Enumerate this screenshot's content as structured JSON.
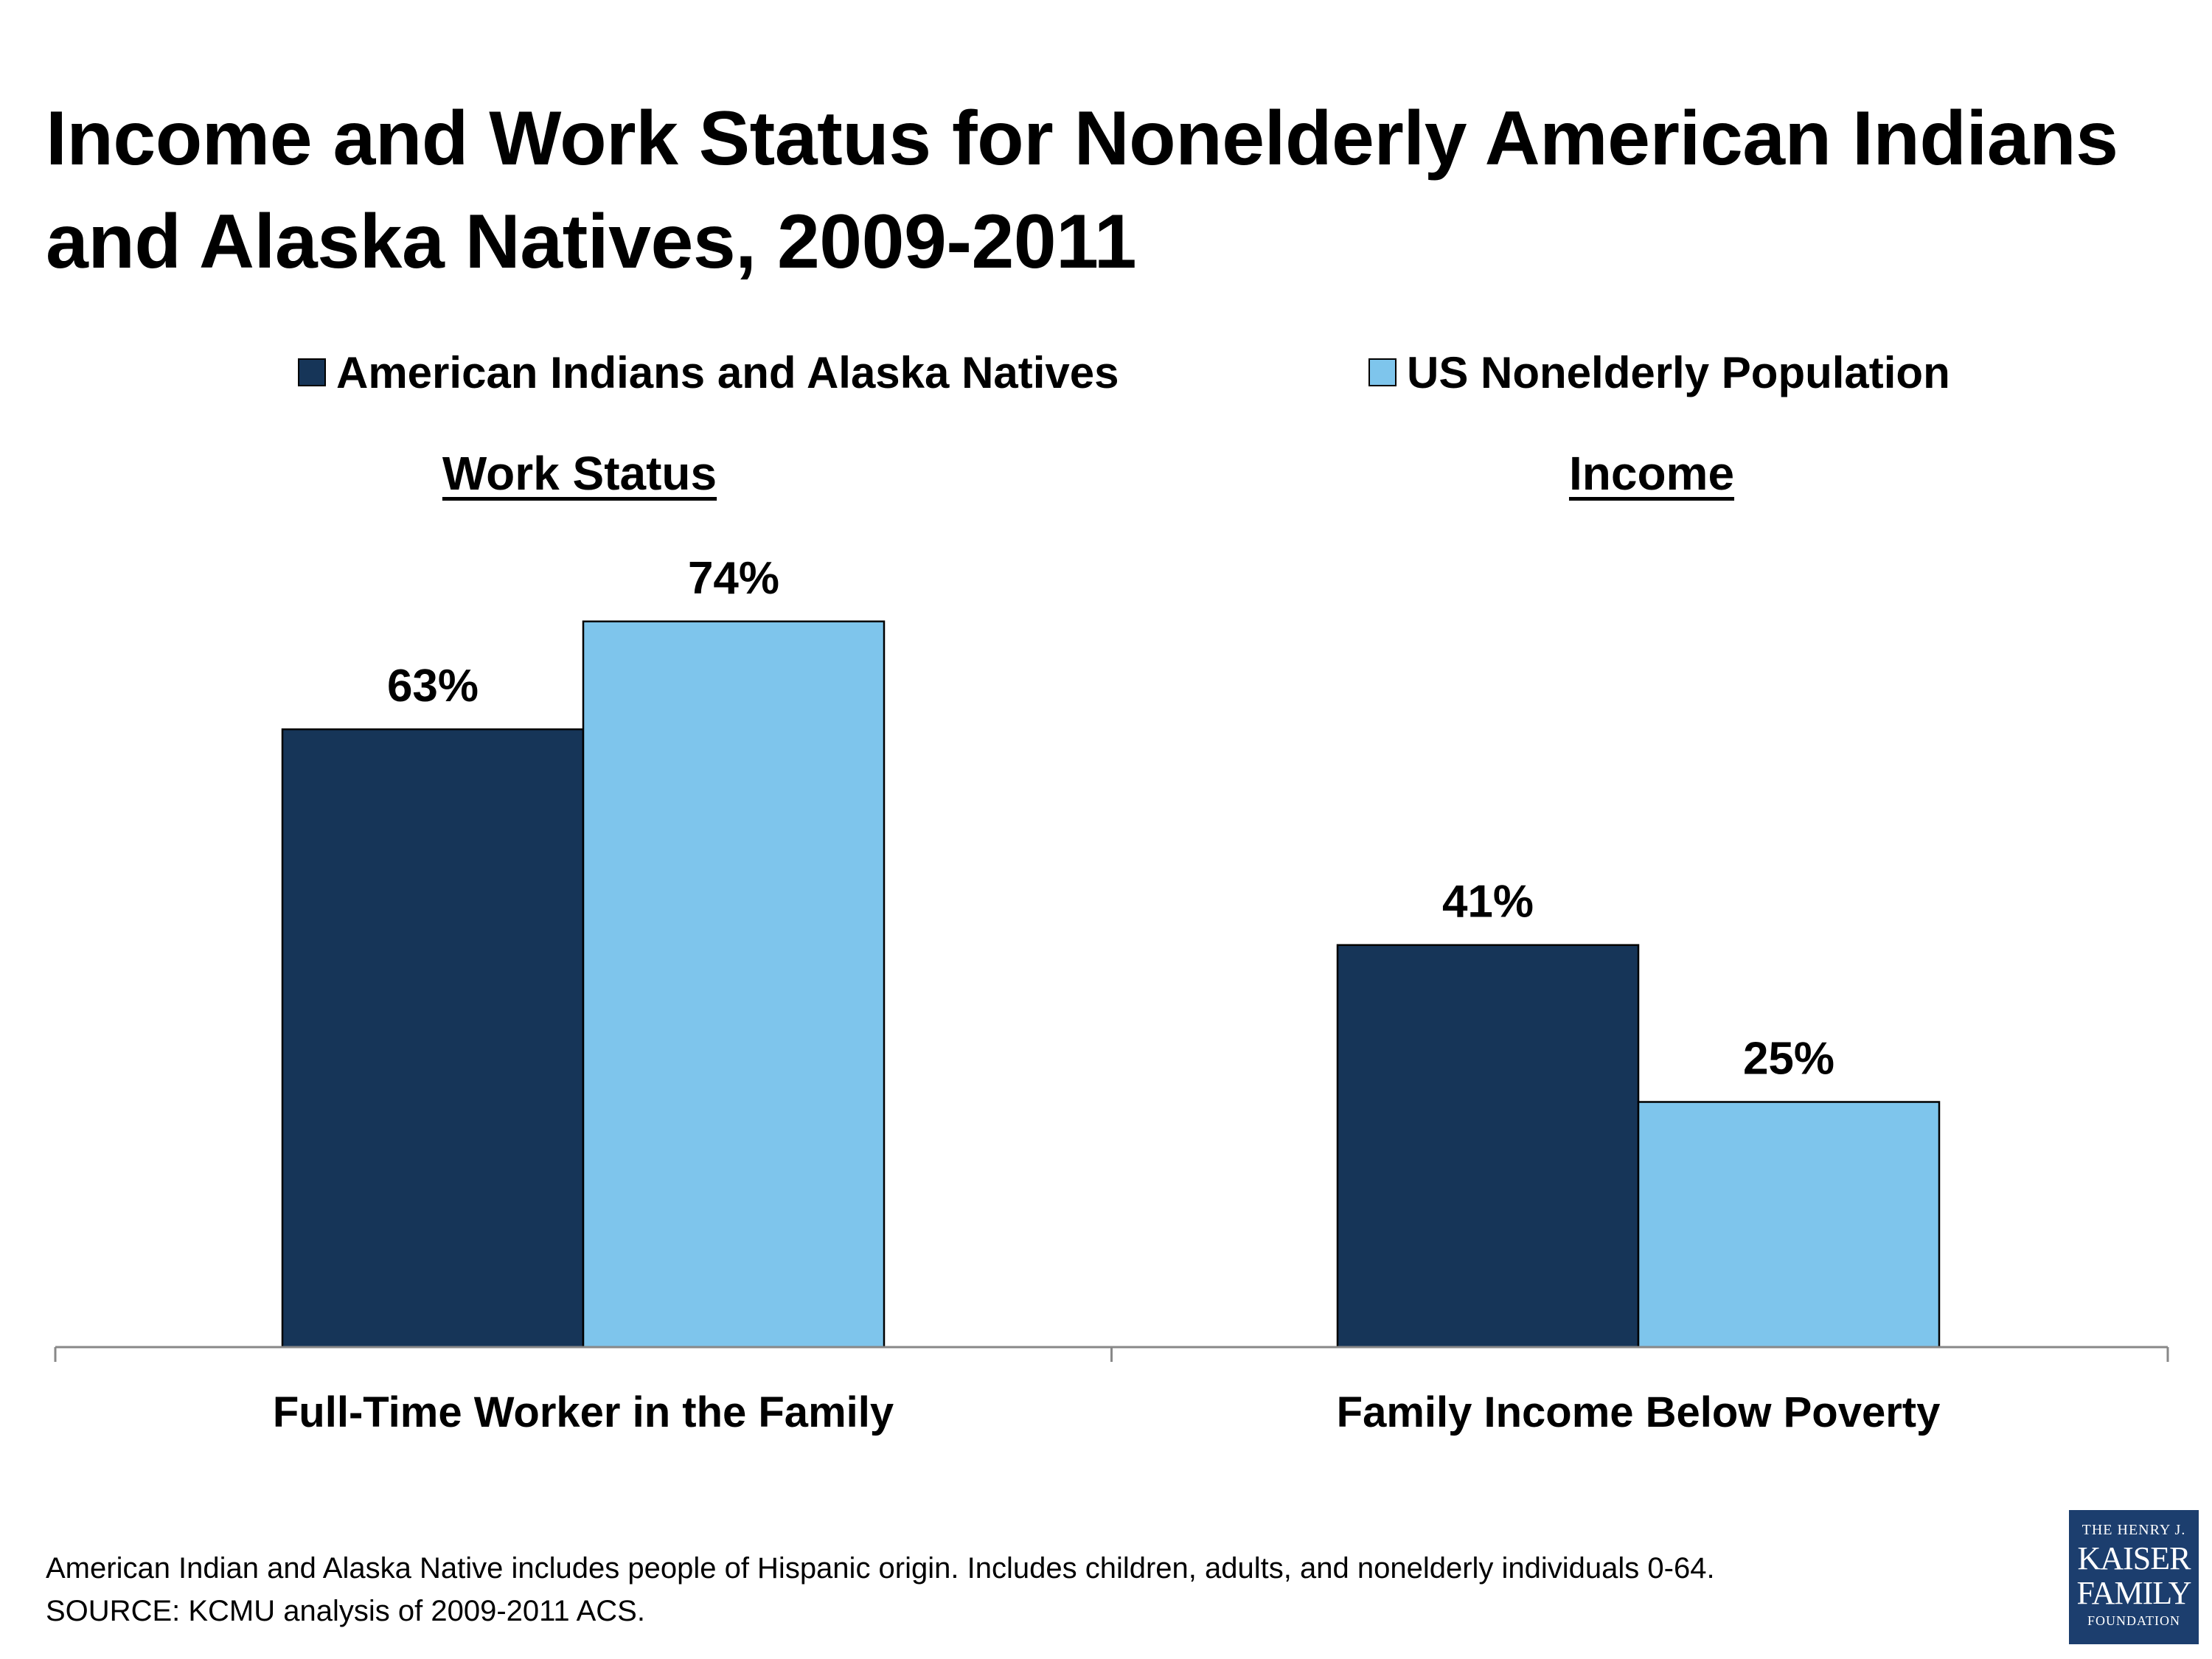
{
  "title": "Income and Work Status for Nonelderly American Indians and Alaska Natives, 2009-2011",
  "colors": {
    "aian": "#163558",
    "us": "#7ec5ec",
    "axis": "#888888"
  },
  "legend": [
    {
      "label": "American Indians and Alaska Natives",
      "color": "#163558"
    },
    {
      "label": "US Nonelderly Population",
      "color": "#7ec5ec"
    }
  ],
  "group_headings": {
    "work": "Work Status",
    "income": "Income"
  },
  "chart_data": {
    "type": "bar",
    "categories": [
      "Full-Time Worker in the Family",
      "Family Income Below Poverty"
    ],
    "series": [
      {
        "name": "American Indians and Alaska Natives",
        "values": [
          63,
          41
        ],
        "labels": [
          "63%",
          "41%"
        ]
      },
      {
        "name": "US Nonelderly Population",
        "values": [
          74,
          25
        ],
        "labels": [
          "74%",
          "25%"
        ]
      }
    ],
    "ylim": [
      0,
      100
    ],
    "grid": false,
    "legend_position": "top"
  },
  "footnote": {
    "line1": "American Indian and Alaska Native includes people of Hispanic origin. Includes children, adults, and nonelderly individuals 0-64.",
    "line2": "SOURCE: KCMU analysis of 2009-2011 ACS."
  },
  "logo": {
    "line1": "THE HENRY J.",
    "line2": "KAISER",
    "line3": "FAMILY",
    "line4": "FOUNDATION"
  }
}
